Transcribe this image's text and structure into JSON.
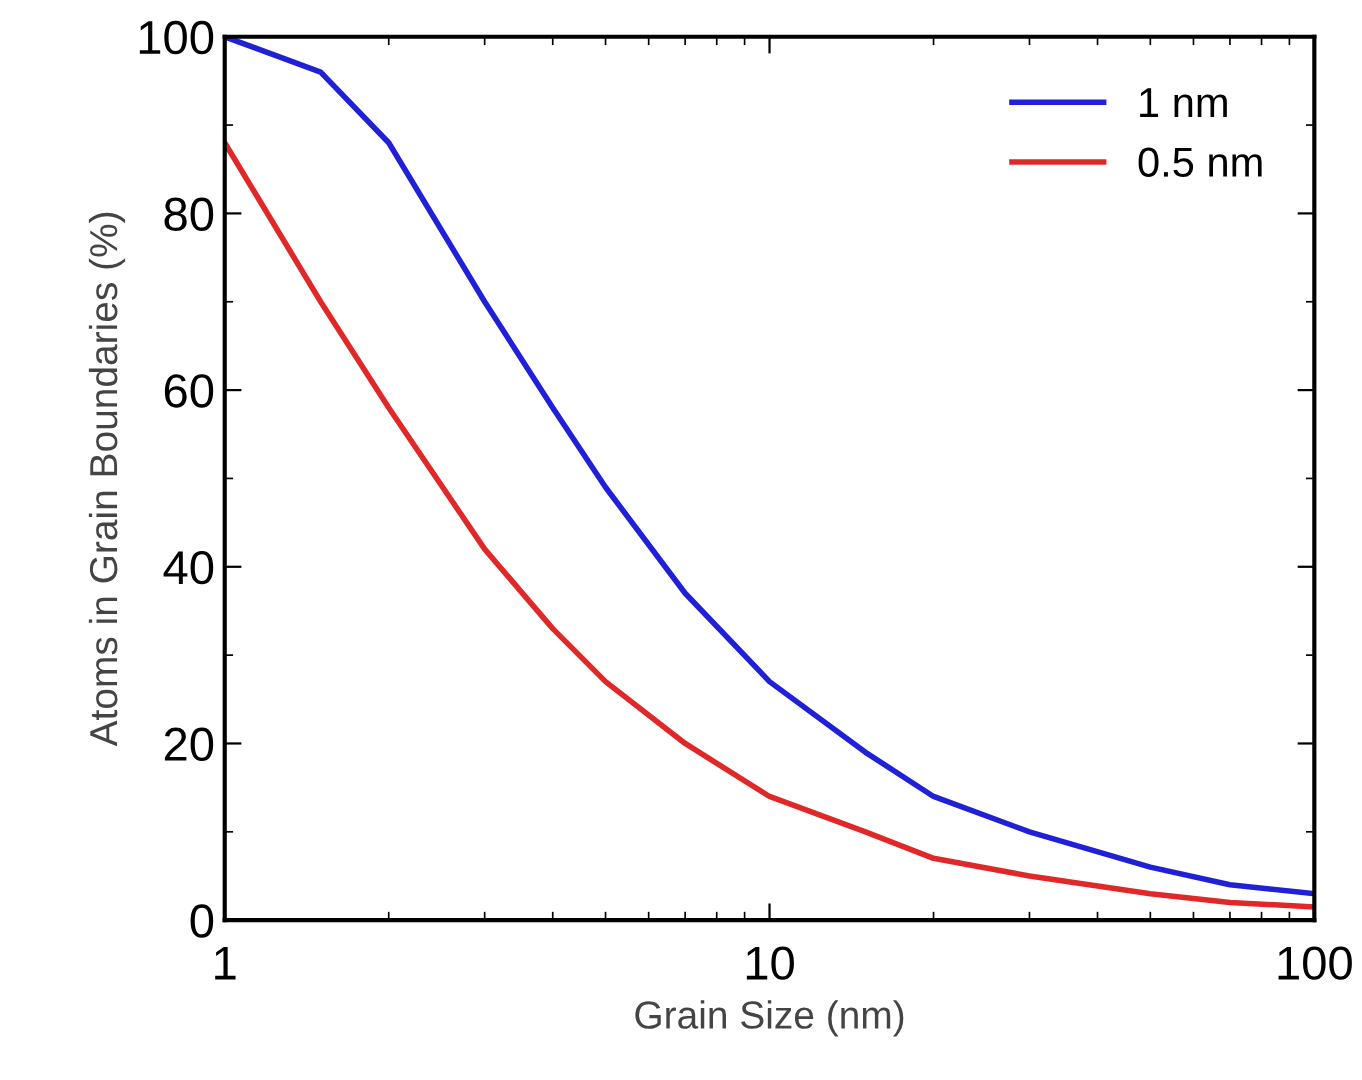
{
  "chart_data": {
    "type": "line",
    "xlabel": "Grain Size (nm)",
    "ylabel": "Atoms in Grain Boundaries (%)",
    "log": "x",
    "xlim": [
      1,
      100
    ],
    "xticks": [
      1,
      10,
      100
    ],
    "ylim": [
      0,
      100
    ],
    "yticks": [
      0,
      20,
      40,
      60,
      80,
      100
    ],
    "grid": false,
    "legend": "top right",
    "marker": "none",
    "line_style": "solid",
    "series": [
      {
        "name": "1 nm",
        "color": "#2020d8",
        "x": [
          1,
          1.5,
          2,
          3,
          4,
          5,
          7,
          10,
          15,
          20,
          30,
          50,
          70,
          100
        ],
        "values": [
          100,
          96,
          88,
          70,
          58,
          49,
          37,
          27,
          19,
          14,
          10,
          6,
          4,
          3
        ]
      },
      {
        "name": "0.5 nm",
        "color": "#e02828",
        "x": [
          1,
          1.5,
          2,
          3,
          4,
          5,
          7,
          10,
          15,
          20,
          30,
          50,
          70,
          100
        ],
        "values": [
          88,
          70,
          58,
          42,
          33,
          27,
          20,
          14,
          10,
          7,
          5,
          3,
          2,
          1.5
        ]
      }
    ]
  }
}
